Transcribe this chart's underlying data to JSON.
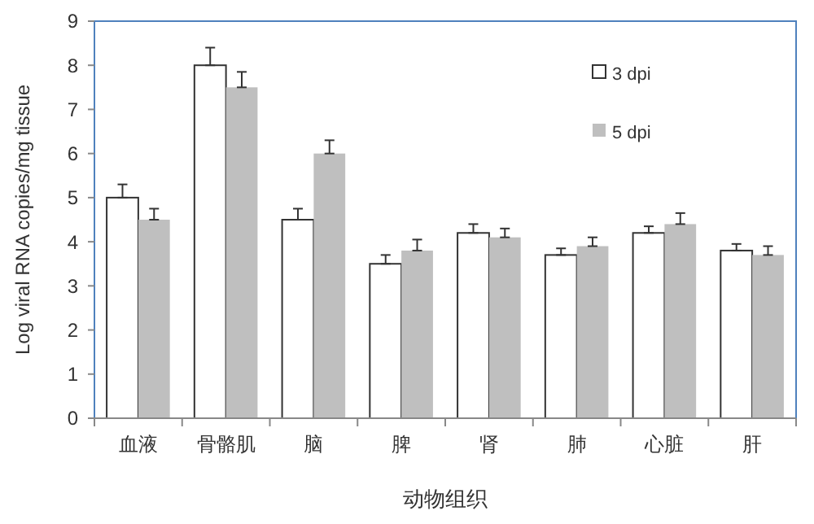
{
  "chart_data": {
    "type": "bar",
    "xlabel": "动物组织",
    "ylabel": "Log viral RNA copies/mg tissue",
    "categories": [
      "血液",
      "骨骼肌",
      "脑",
      "脾",
      "肾",
      "肺",
      "心脏",
      "肝"
    ],
    "series": [
      {
        "name": "3 dpi",
        "color": "#ffffff",
        "values": [
          5.0,
          8.0,
          4.5,
          3.5,
          4.2,
          3.7,
          4.2,
          3.8
        ],
        "errors": [
          [
            5.0,
            5.3
          ],
          [
            8.0,
            8.4
          ],
          [
            4.5,
            4.75
          ],
          [
            3.5,
            3.7
          ],
          [
            4.2,
            4.4
          ],
          [
            3.7,
            3.85
          ],
          [
            4.2,
            4.35
          ],
          [
            3.8,
            3.95
          ]
        ]
      },
      {
        "name": "5 dpi",
        "color": "#bfbfbf",
        "values": [
          4.5,
          7.5,
          6.0,
          3.8,
          4.1,
          3.9,
          4.4,
          3.7
        ],
        "errors": [
          [
            4.5,
            4.75
          ],
          [
            7.5,
            7.85
          ],
          [
            6.0,
            6.3
          ],
          [
            3.8,
            4.05
          ],
          [
            4.1,
            4.3
          ],
          [
            3.9,
            4.1
          ],
          [
            4.4,
            4.65
          ],
          [
            3.7,
            3.9
          ]
        ]
      }
    ],
    "ylim": [
      0,
      9
    ],
    "yticks": [
      0,
      1,
      2,
      3,
      4,
      5,
      6,
      7,
      8,
      9
    ],
    "legend": "top right",
    "grid": false
  }
}
